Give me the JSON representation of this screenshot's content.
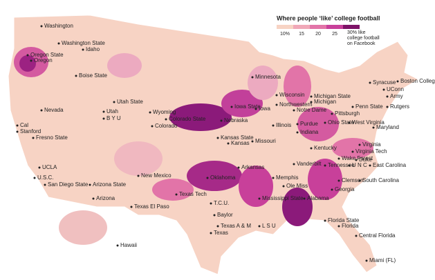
{
  "legend": {
    "title": "Where people ‘like’ college football",
    "ticks": [
      {
        "value": 10,
        "label": "10%"
      },
      15,
      20,
      25,
      {
        "value": 30,
        "label": "30% like college football on Facebook"
      }
    ],
    "colors": [
      "#f7d3c4",
      "#f0a8b8",
      "#e274a8",
      "#c8409a",
      "#7d1367"
    ]
  },
  "labels": [
    "Washington",
    "Washington State",
    "Idaho",
    "Oregon State",
    "Oregon",
    "Boise State",
    "Nevada",
    "Cal",
    "Stanford",
    "Fresno State",
    "UCLA",
    "U.S.C.",
    "San Diego State",
    "Arizona State",
    "Arizona",
    "Utah State",
    "Utah",
    "B Y U",
    "Wyoming",
    "Colorado State",
    "Colorado",
    "New Mexico",
    "Texas El Paso",
    "Texas Tech",
    "T.C.U.",
    "Baylor",
    "Texas A & M",
    "Texas",
    "Oklahoma",
    "Arkansas",
    "Kansas State",
    "Kansas",
    "Missouri",
    "Nebraska",
    "Iowa State",
    "Iowa",
    "Minnesota",
    "Wisconsin",
    "Northwestern",
    "Illinois",
    "Notre Dame",
    "Michigan State",
    "Michigan",
    "Purdue",
    "Indiana",
    "Ohio State",
    "Pittsburgh",
    "Penn State",
    "West Virginia",
    "Maryland",
    "Kentucky",
    "Vanderbilt",
    "Tennessee",
    "Wake Forest",
    "Virginia",
    "Virginia Tech",
    "Duke",
    "U N C",
    "East Carolina",
    "Clemson",
    "South Carolina",
    "Georgia",
    "Memphis",
    "Ole Miss",
    "Mississippi State",
    "Alabama",
    "L S U",
    "Florida State",
    "Florida",
    "Central Florida",
    "Miami (FL)",
    "Hawaii",
    "Syracuse",
    "Boston College",
    "UConn",
    "Army",
    "Rutgers"
  ]
}
